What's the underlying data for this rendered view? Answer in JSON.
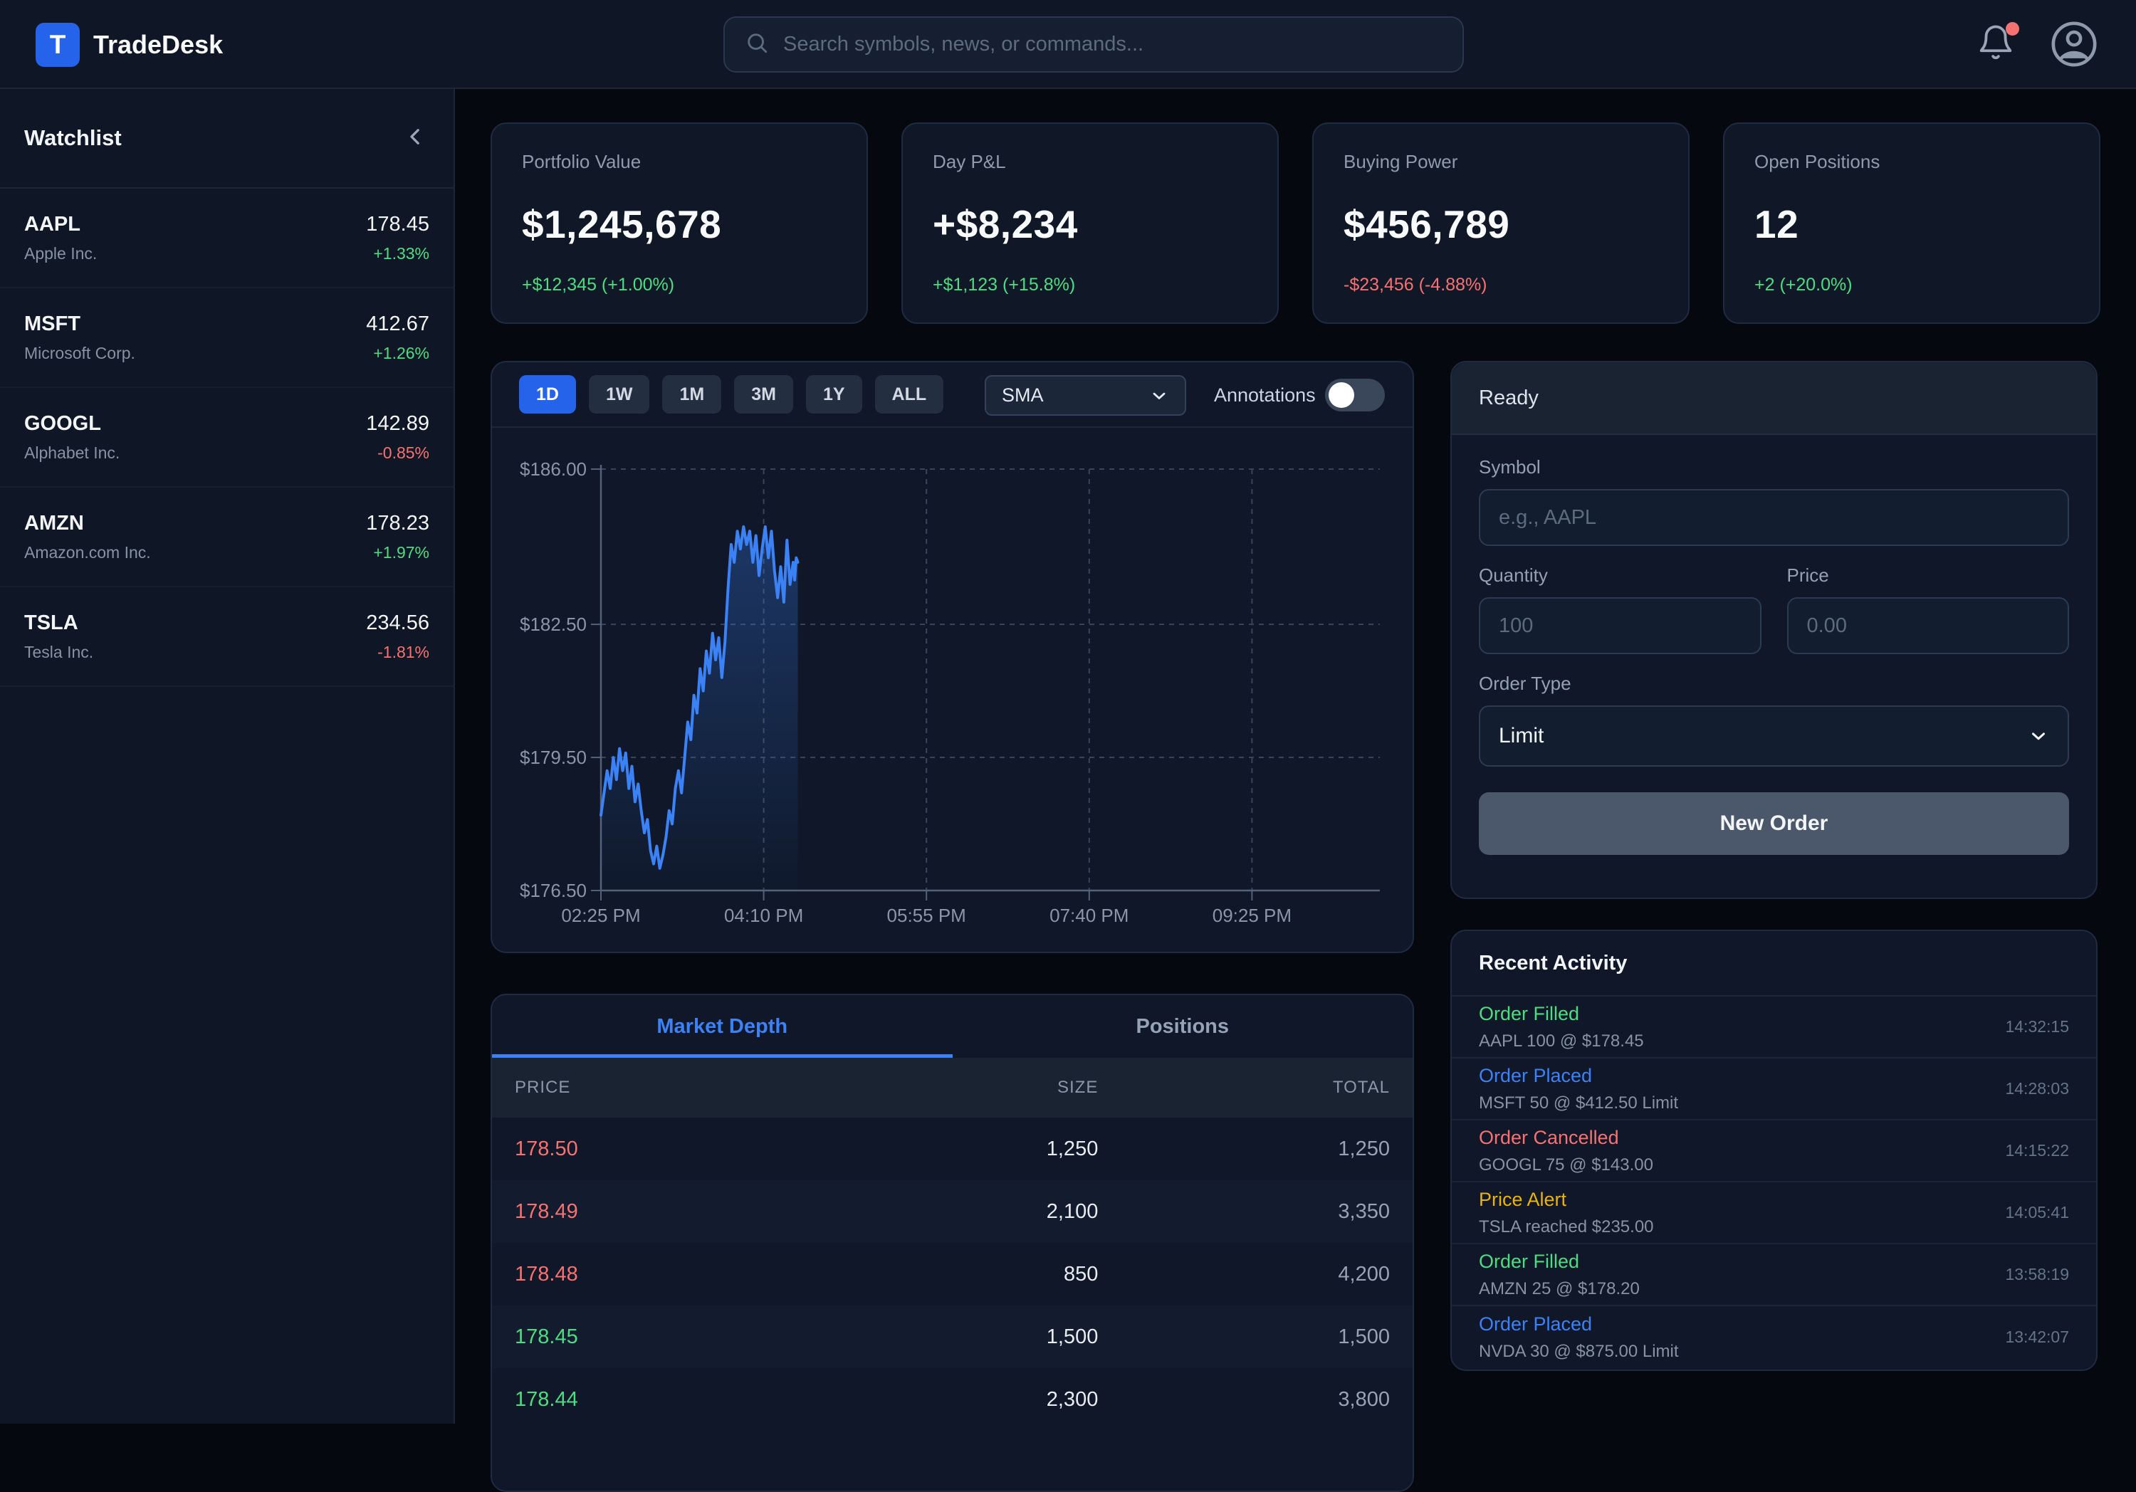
{
  "app": {
    "brand": "TradeDesk",
    "logo_letter": "T"
  },
  "header": {
    "search_placeholder": "Search symbols, news, or commands...",
    "notification_badge": true
  },
  "watchlist": {
    "title": "Watchlist",
    "items": [
      {
        "symbol": "AAPL",
        "name": "Apple Inc.",
        "price": "178.45",
        "change": "+1.33%",
        "direction": "up"
      },
      {
        "symbol": "MSFT",
        "name": "Microsoft Corp.",
        "price": "412.67",
        "change": "+1.26%",
        "direction": "up"
      },
      {
        "symbol": "GOOGL",
        "name": "Alphabet Inc.",
        "price": "142.89",
        "change": "-0.85%",
        "direction": "down"
      },
      {
        "symbol": "AMZN",
        "name": "Amazon.com Inc.",
        "price": "178.23",
        "change": "+1.97%",
        "direction": "up"
      },
      {
        "symbol": "TSLA",
        "name": "Tesla Inc.",
        "price": "234.56",
        "change": "-1.81%",
        "direction": "down"
      }
    ]
  },
  "stats": [
    {
      "label": "Portfolio Value",
      "value": "$1,245,678",
      "change": "+$12,345 (+1.00%)",
      "direction": "up"
    },
    {
      "label": "Day P&L",
      "value": "+$8,234",
      "change": "+$1,123 (+15.8%)",
      "direction": "up"
    },
    {
      "label": "Buying Power",
      "value": "$456,789",
      "change": "-$23,456 (-4.88%)",
      "direction": "down"
    },
    {
      "label": "Open Positions",
      "value": "12",
      "change": "+2 (+20.0%)",
      "direction": "up"
    }
  ],
  "chart_panel": {
    "timeframes": [
      "1D",
      "1W",
      "1M",
      "3M",
      "1Y",
      "ALL"
    ],
    "active_timeframe": "1D",
    "indicator_selected": "SMA",
    "annotations_label": "Annotations",
    "annotations_enabled": false
  },
  "chart_data": {
    "type": "area",
    "title": "",
    "xlabel": "",
    "ylabel": "",
    "x_tick_labels": [
      "02:25 PM",
      "04:10 PM",
      "05:55 PM",
      "07:40 PM",
      "09:25 PM"
    ],
    "x_tick_minutes": [
      0,
      105,
      210,
      315,
      420
    ],
    "x_domain_minutes": [
      0,
      502.5
    ],
    "y_tick_labels": [
      "$186.00",
      "$182.50",
      "$179.50",
      "$176.50"
    ],
    "y_ticks": [
      186.0,
      182.5,
      179.5,
      176.5
    ],
    "ylim": [
      176.5,
      186.0
    ],
    "grid": "dashed",
    "legend": "none",
    "line_color": "#3b82f6",
    "series": [
      {
        "name": "Price",
        "x_minutes": [
          0,
          2,
          4,
          6,
          8,
          10,
          12,
          14,
          16,
          18,
          20,
          22,
          24,
          26,
          28,
          30,
          32,
          34,
          36,
          38,
          40,
          42,
          44,
          46,
          48,
          50,
          52,
          54,
          56,
          58,
          60,
          62,
          64,
          66,
          68,
          70,
          72,
          74,
          76,
          78,
          80,
          82,
          84,
          86,
          88,
          90,
          92,
          94,
          96,
          98,
          100,
          102,
          104,
          106,
          108,
          110,
          112,
          114,
          116,
          118,
          120,
          122,
          124,
          125,
          126,
          127
        ],
        "values": [
          178.2,
          178.7,
          179.2,
          178.8,
          179.5,
          179.0,
          179.7,
          179.2,
          179.6,
          178.8,
          179.3,
          178.5,
          178.9,
          178.3,
          177.8,
          178.1,
          177.4,
          177.1,
          177.5,
          177.0,
          177.3,
          177.7,
          178.3,
          178.0,
          178.8,
          179.2,
          178.7,
          179.5,
          180.3,
          179.9,
          180.9,
          180.5,
          181.5,
          181.0,
          181.9,
          181.4,
          182.3,
          181.7,
          182.2,
          181.3,
          182.1,
          183.3,
          184.3,
          183.9,
          184.6,
          184.2,
          184.7,
          184.3,
          184.6,
          183.9,
          184.5,
          183.6,
          184.2,
          184.7,
          184.0,
          184.6,
          183.7,
          183.1,
          183.8,
          183.0,
          184.4,
          183.4,
          183.9,
          183.5,
          184.0,
          183.9
        ]
      }
    ]
  },
  "depth_panel": {
    "tabs": [
      "Market Depth",
      "Positions"
    ],
    "active_tab": "Market Depth",
    "columns": [
      "PRICE",
      "SIZE",
      "TOTAL"
    ],
    "rows": [
      {
        "price": "178.50",
        "size": "1,250",
        "total": "1,250",
        "side": "ask"
      },
      {
        "price": "178.49",
        "size": "2,100",
        "total": "3,350",
        "side": "ask"
      },
      {
        "price": "178.48",
        "size": "850",
        "total": "4,200",
        "side": "ask"
      },
      {
        "price": "178.45",
        "size": "1,500",
        "total": "1,500",
        "side": "bid"
      },
      {
        "price": "178.44",
        "size": "2,300",
        "total": "3,800",
        "side": "bid"
      }
    ]
  },
  "order_panel": {
    "status": "Ready",
    "symbol_label": "Symbol",
    "symbol_placeholder": "e.g., AAPL",
    "quantity_label": "Quantity",
    "quantity_placeholder": "100",
    "price_label": "Price",
    "price_placeholder": "0.00",
    "order_type_label": "Order Type",
    "order_type_selected": "Limit",
    "submit_label": "New Order"
  },
  "activity_panel": {
    "title": "Recent Activity",
    "items": [
      {
        "type": "Order Filled",
        "detail": "AAPL 100 @ $178.45",
        "time": "14:32:15",
        "color": "green"
      },
      {
        "type": "Order Placed",
        "detail": "MSFT 50 @ $412.50 Limit",
        "time": "14:28:03",
        "color": "blue"
      },
      {
        "type": "Order Cancelled",
        "detail": "GOOGL 75 @ $143.00",
        "time": "14:15:22",
        "color": "red"
      },
      {
        "type": "Price Alert",
        "detail": "TSLA reached $235.00",
        "time": "14:05:41",
        "color": "yellow"
      },
      {
        "type": "Order Filled",
        "detail": "AMZN 25 @ $178.20",
        "time": "13:58:19",
        "color": "green"
      },
      {
        "type": "Order Placed",
        "detail": "NVDA 30 @ $875.00 Limit",
        "time": "13:42:07",
        "color": "blue"
      }
    ]
  },
  "colors": {
    "accent": "#2563eb",
    "chart_line": "#3b82f6",
    "positive": "#4ade80",
    "negative": "#f87171",
    "alert": "#eab308",
    "badge": "#f87171"
  }
}
